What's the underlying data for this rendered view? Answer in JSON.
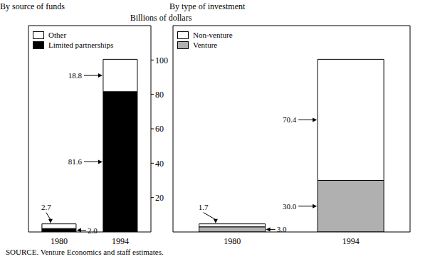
{
  "chart_data": [
    {
      "type": "bar",
      "title": "By source of funds",
      "ylabel": "Billions of dollars",
      "categories": [
        "1980",
        "1994"
      ],
      "series": [
        {
          "name": "Limited partnerships",
          "color": "#000000",
          "values": [
            2.0,
            81.6
          ],
          "value_labels": [
            "2.0",
            "81.6"
          ]
        },
        {
          "name": "Other",
          "color": "#ffffff",
          "values": [
            2.7,
            18.8
          ],
          "value_labels": [
            "2.7",
            "18.8"
          ]
        }
      ],
      "stacked": true,
      "ylim": [
        0,
        120
      ],
      "yticks": [
        20,
        40,
        60,
        80,
        100
      ],
      "data_labels": true,
      "legend": "upper left"
    },
    {
      "type": "bar",
      "title": "By type of investment",
      "categories": [
        "1980",
        "1994"
      ],
      "series": [
        {
          "name": "Venture",
          "color": "#b0b0b0",
          "values": [
            3.0,
            30.0
          ],
          "value_labels": [
            "3.0",
            "30.0"
          ]
        },
        {
          "name": "Non-venture",
          "color": "#ffffff",
          "values": [
            1.7,
            70.4
          ],
          "value_labels": [
            "1.7",
            "70.4"
          ]
        }
      ],
      "stacked": true,
      "ylim": [
        0,
        120
      ],
      "yticks": [
        20,
        40,
        60,
        80,
        100
      ],
      "data_labels": true,
      "legend": "upper left",
      "tick_labels": "x"
    }
  ],
  "source": "SOURCE. Venture Economics and staff estimates."
}
